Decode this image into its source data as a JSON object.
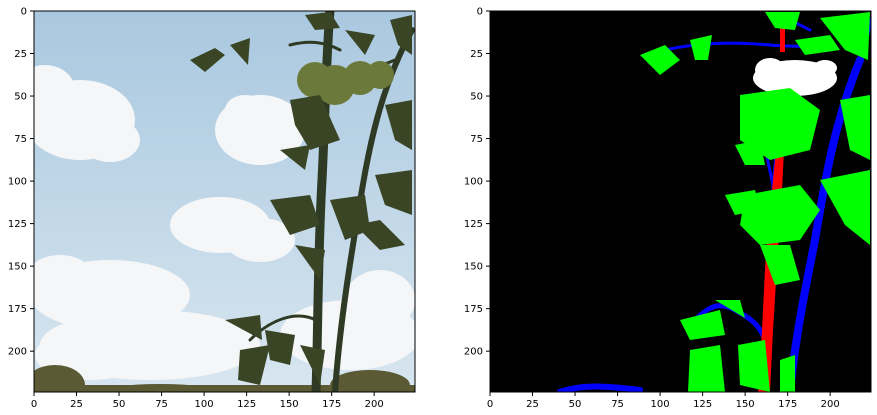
{
  "figure": {
    "panels": [
      {
        "name": "input-image",
        "kind": "photo",
        "x_ticks": [
          "0",
          "25",
          "50",
          "75",
          "100",
          "125",
          "150",
          "175",
          "200"
        ],
        "y_ticks": [
          "0",
          "25",
          "50",
          "75",
          "100",
          "125",
          "150",
          "175",
          "200"
        ],
        "x_tick_values": [
          0,
          25,
          50,
          75,
          100,
          125,
          150,
          175,
          200
        ],
        "y_tick_values": [
          0,
          25,
          50,
          75,
          100,
          125,
          150,
          175,
          200
        ],
        "extent": [
          0,
          224
        ]
      },
      {
        "name": "segmentation-mask",
        "kind": "mask",
        "x_ticks": [
          "0",
          "25",
          "50",
          "75",
          "100",
          "125",
          "150",
          "175",
          "200"
        ],
        "y_ticks": [
          "0",
          "25",
          "50",
          "75",
          "100",
          "125",
          "150",
          "175",
          "200"
        ],
        "x_tick_values": [
          0,
          25,
          50,
          75,
          100,
          125,
          150,
          175,
          200
        ],
        "y_tick_values": [
          0,
          25,
          50,
          75,
          100,
          125,
          150,
          175,
          200
        ],
        "extent": [
          0,
          224
        ]
      }
    ],
    "mask_colors": {
      "background": "#000000",
      "leaf": "#00ff00",
      "stem": "#ff0000",
      "branch": "#0000ff",
      "fruit": "#ffffff"
    },
    "photo_colors": {
      "sky_top": "#a9c8df",
      "sky_bottom": "#d8e6f0",
      "cloud": "#f4f6f8",
      "leaf": "#3a4526",
      "stem": "#2f3a24",
      "fruit": "#6b7a3a",
      "ground": "#5b5a35"
    }
  }
}
